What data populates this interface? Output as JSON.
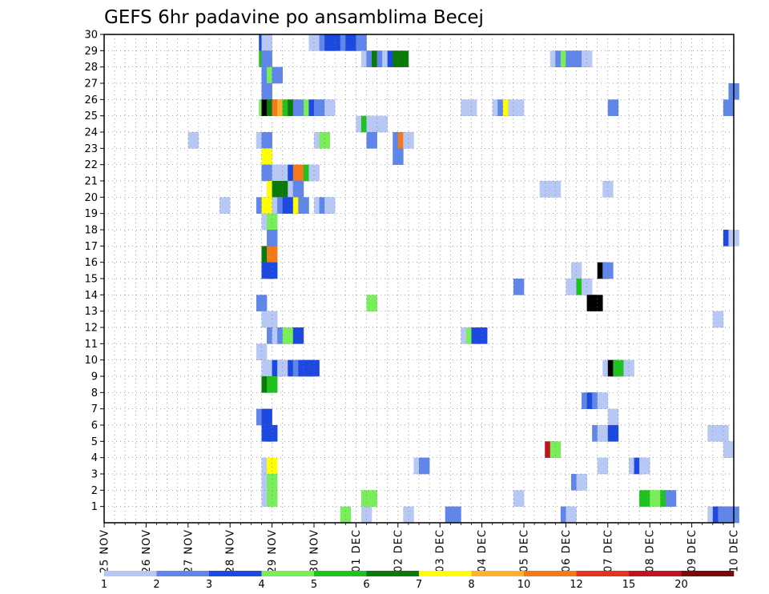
{
  "chart_data": {
    "type": "heatmap",
    "title": "GEFS 6hr padavine po ansamblima Becej",
    "xlabel": "",
    "ylabel": "",
    "x_categories": [
      "25 NOV",
      "26 NOV",
      "27 NOV",
      "28 NOV",
      "29 NOV",
      "30 NOV",
      "01 DEC",
      "02 DEC",
      "03 DEC",
      "04 DEC",
      "05 DEC",
      "06 DEC",
      "07 DEC",
      "08 DEC",
      "09 DEC",
      "10 DEC"
    ],
    "x_steps_per_day": 4,
    "x_range_steps": [
      0,
      60
    ],
    "y_categories": [
      1,
      2,
      3,
      4,
      5,
      6,
      7,
      8,
      9,
      10,
      11,
      12,
      13,
      14,
      15,
      16,
      17,
      18,
      19,
      20,
      21,
      22,
      23,
      24,
      25,
      26,
      27,
      28,
      29,
      30
    ],
    "y_range": [
      0,
      30
    ],
    "grid": true,
    "legend": {
      "position": "bottom",
      "labels": [
        "1",
        "2",
        "3",
        "4",
        "5",
        "6",
        "7",
        "8",
        "10",
        "12",
        "15",
        "20"
      ],
      "colors": [
        "#b8c8f5",
        "#5f86e8",
        "#1c4ae0",
        "#78ee5a",
        "#1fc21f",
        "#0a7a0a",
        "#ffff00",
        "#ffb02e",
        "#f27a1a",
        "#e8321e",
        "#c0141e",
        "#7a0a0a"
      ]
    },
    "cells": [
      [
        30,
        14.75,
        3
      ],
      [
        30,
        15.0,
        1
      ],
      [
        30,
        19.5,
        1
      ],
      [
        30,
        20.5,
        2
      ],
      [
        30,
        21.0,
        3
      ],
      [
        30,
        21.5,
        3
      ],
      [
        30,
        22.5,
        2
      ],
      [
        30,
        23.0,
        3
      ],
      [
        30,
        23.5,
        3
      ],
      [
        30,
        24.0,
        2
      ],
      [
        29,
        14.75,
        5
      ],
      [
        29,
        15.0,
        2
      ],
      [
        29,
        24.5,
        1
      ],
      [
        29,
        25.0,
        2
      ],
      [
        29,
        25.5,
        6
      ],
      [
        29,
        26.0,
        2
      ],
      [
        29,
        26.5,
        1
      ],
      [
        29,
        27.0,
        3
      ],
      [
        29,
        27.5,
        6
      ],
      [
        29,
        28.0,
        6
      ],
      [
        29,
        42.5,
        1
      ],
      [
        29,
        43.0,
        2
      ],
      [
        29,
        43.5,
        4
      ],
      [
        29,
        44.0,
        2
      ],
      [
        29,
        44.5,
        2
      ],
      [
        29,
        45.0,
        2
      ],
      [
        29,
        45.5,
        1
      ],
      [
        28,
        15.0,
        2
      ],
      [
        28,
        15.5,
        4
      ],
      [
        28,
        16.0,
        2
      ],
      [
        27,
        15.0,
        2
      ],
      [
        27,
        59.5,
        2
      ],
      [
        26,
        14.75,
        4
      ],
      [
        26,
        15.0,
        13
      ],
      [
        26,
        15.5,
        6
      ],
      [
        26,
        16.0,
        9
      ],
      [
        26,
        16.5,
        8
      ],
      [
        26,
        17.0,
        5
      ],
      [
        26,
        17.5,
        6
      ],
      [
        26,
        18.0,
        2
      ],
      [
        26,
        19.0,
        4
      ],
      [
        26,
        19.5,
        3
      ],
      [
        26,
        20.0,
        2
      ],
      [
        26,
        20.5,
        2
      ],
      [
        26,
        21.0,
        1
      ],
      [
        26,
        34.0,
        1
      ],
      [
        26,
        34.5,
        1
      ],
      [
        26,
        37.0,
        1
      ],
      [
        26,
        37.5,
        2
      ],
      [
        26,
        38.0,
        7
      ],
      [
        26,
        38.5,
        1
      ],
      [
        26,
        39.0,
        1
      ],
      [
        26,
        48.0,
        2
      ],
      [
        26,
        59.0,
        2
      ],
      [
        25,
        24.0,
        1
      ],
      [
        25,
        24.5,
        5
      ],
      [
        25,
        25.0,
        1
      ],
      [
        25,
        25.5,
        1
      ],
      [
        25,
        26.0,
        1
      ],
      [
        24,
        8.0,
        1
      ],
      [
        24,
        14.5,
        1
      ],
      [
        24,
        15.0,
        2
      ],
      [
        24,
        20.0,
        1
      ],
      [
        24,
        20.5,
        4
      ],
      [
        24,
        25.0,
        2
      ],
      [
        24,
        27.5,
        2
      ],
      [
        24,
        28.0,
        9
      ],
      [
        24,
        28.5,
        1
      ],
      [
        23,
        15.0,
        7
      ],
      [
        23,
        27.5,
        2
      ],
      [
        22,
        15.0,
        2
      ],
      [
        22,
        16.0,
        1
      ],
      [
        22,
        16.5,
        1
      ],
      [
        22,
        17.5,
        3
      ],
      [
        22,
        18.0,
        9
      ],
      [
        22,
        18.5,
        9
      ],
      [
        22,
        19.0,
        5
      ],
      [
        22,
        19.5,
        1
      ],
      [
        21,
        15.5,
        7
      ],
      [
        21,
        16.0,
        6
      ],
      [
        21,
        16.5,
        6
      ],
      [
        21,
        17.5,
        1
      ],
      [
        21,
        18.0,
        2
      ],
      [
        21,
        41.5,
        1
      ],
      [
        21,
        42.0,
        1
      ],
      [
        21,
        42.5,
        1
      ],
      [
        21,
        47.5,
        1
      ],
      [
        20,
        11.0,
        1
      ],
      [
        20,
        14.5,
        2
      ],
      [
        20,
        15.0,
        7
      ],
      [
        20,
        16.0,
        1
      ],
      [
        20,
        16.5,
        2
      ],
      [
        20,
        17.0,
        3
      ],
      [
        20,
        17.5,
        3
      ],
      [
        20,
        18.0,
        7
      ],
      [
        20,
        18.5,
        2
      ],
      [
        20,
        20.0,
        1
      ],
      [
        20,
        20.5,
        2
      ],
      [
        20,
        21.0,
        1
      ],
      [
        19,
        15.0,
        1
      ],
      [
        19,
        15.5,
        4
      ],
      [
        18,
        15.5,
        2
      ],
      [
        18,
        59.0,
        3
      ],
      [
        18,
        59.5,
        1
      ],
      [
        17,
        15.0,
        6
      ],
      [
        17,
        15.5,
        9
      ],
      [
        16,
        15.0,
        3
      ],
      [
        16,
        15.5,
        3
      ],
      [
        16,
        44.5,
        1
      ],
      [
        16,
        47.0,
        13
      ],
      [
        16,
        47.5,
        2
      ],
      [
        15,
        39.0,
        2
      ],
      [
        15,
        44.0,
        1
      ],
      [
        15,
        45.0,
        5
      ],
      [
        15,
        45.5,
        1
      ],
      [
        14,
        14.5,
        2
      ],
      [
        14,
        25.0,
        4
      ],
      [
        14,
        46.0,
        13
      ],
      [
        14,
        46.5,
        14
      ],
      [
        13,
        15.0,
        1
      ],
      [
        13,
        15.5,
        1
      ],
      [
        13,
        58.0,
        1
      ],
      [
        12,
        15.5,
        2
      ],
      [
        12,
        16.0,
        1
      ],
      [
        12,
        16.5,
        2
      ],
      [
        12,
        17.0,
        4
      ],
      [
        12,
        17.5,
        4
      ],
      [
        12,
        18.0,
        3
      ],
      [
        12,
        34.0,
        1
      ],
      [
        12,
        34.5,
        4
      ],
      [
        12,
        35.0,
        3
      ],
      [
        12,
        35.5,
        3
      ],
      [
        11,
        14.5,
        1
      ],
      [
        10,
        15.0,
        1
      ],
      [
        10,
        15.5,
        1
      ],
      [
        10,
        16.0,
        3
      ],
      [
        10,
        16.5,
        1
      ],
      [
        10,
        17.5,
        3
      ],
      [
        10,
        18.0,
        2
      ],
      [
        10,
        18.5,
        3
      ],
      [
        10,
        19.0,
        3
      ],
      [
        10,
        19.5,
        3
      ],
      [
        10,
        47.5,
        1
      ],
      [
        10,
        48.0,
        14
      ],
      [
        10,
        48.5,
        5
      ],
      [
        10,
        49.5,
        1
      ],
      [
        9,
        15.0,
        6
      ],
      [
        9,
        15.5,
        5
      ],
      [
        8,
        45.5,
        2
      ],
      [
        8,
        46.0,
        3
      ],
      [
        8,
        46.5,
        2
      ],
      [
        8,
        47.0,
        1
      ],
      [
        7,
        14.5,
        2
      ],
      [
        7,
        15.0,
        3
      ],
      [
        7,
        48.0,
        1
      ],
      [
        6,
        15.0,
        3
      ],
      [
        6,
        15.5,
        3
      ],
      [
        6,
        46.5,
        2
      ],
      [
        6,
        47.0,
        1
      ],
      [
        6,
        47.5,
        1
      ],
      [
        6,
        48.0,
        3
      ],
      [
        6,
        57.5,
        1
      ],
      [
        6,
        58.0,
        1
      ],
      [
        6,
        58.5,
        1
      ],
      [
        5,
        42.0,
        11
      ],
      [
        5,
        42.5,
        4
      ],
      [
        5,
        59.0,
        1
      ],
      [
        4,
        15.0,
        1
      ],
      [
        4,
        15.5,
        7
      ],
      [
        4,
        29.5,
        1
      ],
      [
        4,
        30.0,
        2
      ],
      [
        4,
        47.0,
        1
      ],
      [
        4,
        50.0,
        1
      ],
      [
        4,
        50.5,
        3
      ],
      [
        4,
        51.0,
        1
      ],
      [
        3,
        15.0,
        1
      ],
      [
        3,
        15.5,
        4
      ],
      [
        3,
        44.5,
        2
      ],
      [
        3,
        45.0,
        1
      ],
      [
        2,
        15.0,
        1
      ],
      [
        2,
        15.5,
        4
      ],
      [
        2,
        24.5,
        4
      ],
      [
        2,
        25.0,
        4
      ],
      [
        2,
        39.0,
        1
      ],
      [
        2,
        51.0,
        5
      ],
      [
        2,
        52.0,
        4
      ],
      [
        2,
        52.5,
        4
      ],
      [
        2,
        53.0,
        5
      ],
      [
        2,
        53.5,
        2
      ],
      [
        1,
        22.5,
        4
      ],
      [
        1,
        24.5,
        1
      ],
      [
        1,
        28.5,
        1
      ],
      [
        1,
        32.5,
        2
      ],
      [
        1,
        33.0,
        2
      ],
      [
        1,
        43.5,
        2
      ],
      [
        1,
        44.0,
        1
      ],
      [
        1,
        57.5,
        1
      ],
      [
        1,
        58.0,
        3
      ],
      [
        1,
        58.5,
        2
      ],
      [
        1,
        59.0,
        2
      ],
      [
        1,
        59.5,
        2
      ]
    ]
  }
}
